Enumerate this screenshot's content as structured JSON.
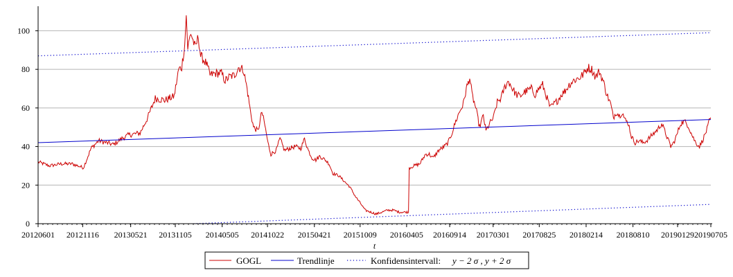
{
  "chart_data": {
    "type": "line",
    "title": "",
    "xlabel": "t",
    "ylabel": "",
    "ylim": [
      0,
      112
    ],
    "yticks": [
      0,
      20,
      40,
      60,
      80,
      100
    ],
    "grid": true,
    "legend_placement": "bottom-center",
    "colors": {
      "series": "#cc0000",
      "trend": "#0000cc",
      "ci": "#0000cc",
      "grid": "#b4b4b4"
    },
    "x_index_range": [
      0,
      1780
    ],
    "x_ticks": [
      {
        "label": "20120601",
        "index": 0
      },
      {
        "label": "20121116",
        "index": 118
      },
      {
        "label": "20130521",
        "index": 245
      },
      {
        "label": "20131105",
        "index": 363
      },
      {
        "label": "20140505",
        "index": 487
      },
      {
        "label": "20141022",
        "index": 607
      },
      {
        "label": "20150421",
        "index": 731
      },
      {
        "label": "20151009",
        "index": 852
      },
      {
        "label": "20160405",
        "index": 975
      },
      {
        "label": "20160914",
        "index": 1089
      },
      {
        "label": "20170301",
        "index": 1204
      },
      {
        "label": "20170825",
        "index": 1326
      },
      {
        "label": "20180214",
        "index": 1450
      },
      {
        "label": "20180810",
        "index": 1574
      },
      {
        "label": "20190129",
        "index": 1692
      },
      {
        "label": "20190705",
        "index": 1780
      }
    ],
    "series": [
      {
        "name": "GOGL",
        "points": [
          [
            0,
            32
          ],
          [
            30,
            30
          ],
          [
            60,
            31
          ],
          [
            90,
            31
          ],
          [
            120,
            29
          ],
          [
            140,
            39
          ],
          [
            160,
            43
          ],
          [
            180,
            42
          ],
          [
            200,
            41
          ],
          [
            220,
            44
          ],
          [
            240,
            46
          ],
          [
            270,
            47
          ],
          [
            290,
            55
          ],
          [
            310,
            65
          ],
          [
            335,
            64
          ],
          [
            360,
            66
          ],
          [
            372,
            80
          ],
          [
            380,
            81
          ],
          [
            388,
            93
          ],
          [
            392,
            108
          ],
          [
            396,
            91
          ],
          [
            404,
            99
          ],
          [
            416,
            91
          ],
          [
            424,
            97
          ],
          [
            430,
            87
          ],
          [
            445,
            83
          ],
          [
            455,
            77
          ],
          [
            470,
            78
          ],
          [
            485,
            78
          ],
          [
            495,
            74
          ],
          [
            505,
            76
          ],
          [
            520,
            77
          ],
          [
            530,
            81
          ],
          [
            543,
            80
          ],
          [
            553,
            70
          ],
          [
            562,
            58
          ],
          [
            570,
            50
          ],
          [
            582,
            48
          ],
          [
            592,
            58
          ],
          [
            600,
            51
          ],
          [
            608,
            42
          ],
          [
            616,
            36
          ],
          [
            630,
            38
          ],
          [
            640,
            44
          ],
          [
            652,
            38
          ],
          [
            665,
            39
          ],
          [
            680,
            40
          ],
          [
            695,
            39
          ],
          [
            705,
            44
          ],
          [
            715,
            38
          ],
          [
            725,
            34
          ],
          [
            735,
            33
          ],
          [
            745,
            35
          ],
          [
            760,
            33
          ],
          [
            770,
            31
          ],
          [
            780,
            26
          ],
          [
            795,
            25
          ],
          [
            810,
            22
          ],
          [
            825,
            19
          ],
          [
            840,
            14
          ],
          [
            855,
            10
          ],
          [
            865,
            7
          ],
          [
            880,
            6
          ],
          [
            895,
            5
          ],
          [
            910,
            6
          ],
          [
            925,
            7
          ],
          [
            940,
            7
          ],
          [
            955,
            6
          ],
          [
            970,
            6
          ],
          [
            980,
            6
          ],
          [
            982,
            29
          ],
          [
            995,
            30
          ],
          [
            1010,
            31
          ],
          [
            1025,
            36
          ],
          [
            1035,
            36
          ],
          [
            1045,
            34
          ],
          [
            1060,
            38
          ],
          [
            1075,
            40
          ],
          [
            1085,
            42
          ],
          [
            1095,
            47
          ],
          [
            1105,
            53
          ],
          [
            1115,
            58
          ],
          [
            1125,
            62
          ],
          [
            1133,
            70
          ],
          [
            1138,
            73
          ],
          [
            1142,
            76
          ],
          [
            1148,
            67
          ],
          [
            1158,
            60
          ],
          [
            1168,
            50
          ],
          [
            1178,
            56
          ],
          [
            1185,
            48
          ],
          [
            1195,
            52
          ],
          [
            1205,
            55
          ],
          [
            1215,
            63
          ],
          [
            1225,
            65
          ],
          [
            1235,
            71
          ],
          [
            1245,
            74
          ],
          [
            1255,
            70
          ],
          [
            1265,
            67
          ],
          [
            1275,
            66
          ],
          [
            1285,
            68
          ],
          [
            1295,
            69
          ],
          [
            1305,
            70
          ],
          [
            1315,
            67
          ],
          [
            1325,
            70
          ],
          [
            1335,
            72
          ],
          [
            1345,
            66
          ],
          [
            1355,
            60
          ],
          [
            1365,
            62
          ],
          [
            1375,
            64
          ],
          [
            1385,
            67
          ],
          [
            1395,
            69
          ],
          [
            1405,
            72
          ],
          [
            1415,
            74
          ],
          [
            1425,
            75
          ],
          [
            1435,
            76
          ],
          [
            1445,
            78
          ],
          [
            1455,
            81
          ],
          [
            1465,
            80
          ],
          [
            1475,
            76
          ],
          [
            1485,
            79
          ],
          [
            1495,
            74
          ],
          [
            1505,
            67
          ],
          [
            1515,
            62
          ],
          [
            1522,
            55
          ],
          [
            1530,
            58
          ],
          [
            1538,
            56
          ],
          [
            1546,
            58
          ],
          [
            1552,
            54
          ],
          [
            1562,
            52
          ],
          [
            1570,
            45
          ],
          [
            1580,
            42
          ],
          [
            1590,
            43
          ],
          [
            1600,
            42
          ],
          [
            1610,
            43
          ],
          [
            1620,
            45
          ],
          [
            1630,
            47
          ],
          [
            1640,
            49
          ],
          [
            1650,
            52
          ],
          [
            1658,
            48
          ],
          [
            1666,
            44
          ],
          [
            1674,
            40
          ],
          [
            1682,
            42
          ],
          [
            1690,
            46
          ],
          [
            1700,
            52
          ],
          [
            1710,
            53
          ],
          [
            1720,
            51
          ],
          [
            1730,
            46
          ],
          [
            1740,
            42
          ],
          [
            1750,
            40
          ],
          [
            1760,
            44
          ],
          [
            1770,
            49
          ],
          [
            1776,
            53
          ],
          [
            1780,
            55
          ]
        ]
      },
      {
        "name": "Trendlinje",
        "points": [
          [
            0,
            42
          ],
          [
            1780,
            54
          ]
        ]
      },
      {
        "name": "Konfidensintervall:",
        "points": [
          [
            0,
            87
          ],
          [
            1780,
            99
          ]
        ]
      },
      {
        "name": "Konfidensintervall:",
        "points": [
          [
            0,
            -3
          ],
          [
            1780,
            10
          ]
        ]
      }
    ]
  },
  "legend": {
    "items": [
      {
        "label": "GOGL",
        "style": "solid",
        "color": "#cc0000"
      },
      {
        "label": "Trendlinje",
        "style": "solid",
        "color": "#0000cc"
      },
      {
        "label": "Konfidensintervall:",
        "style": "dotted",
        "color": "#0000cc",
        "math": "y − 2 σ , y + 2 σ"
      }
    ]
  }
}
